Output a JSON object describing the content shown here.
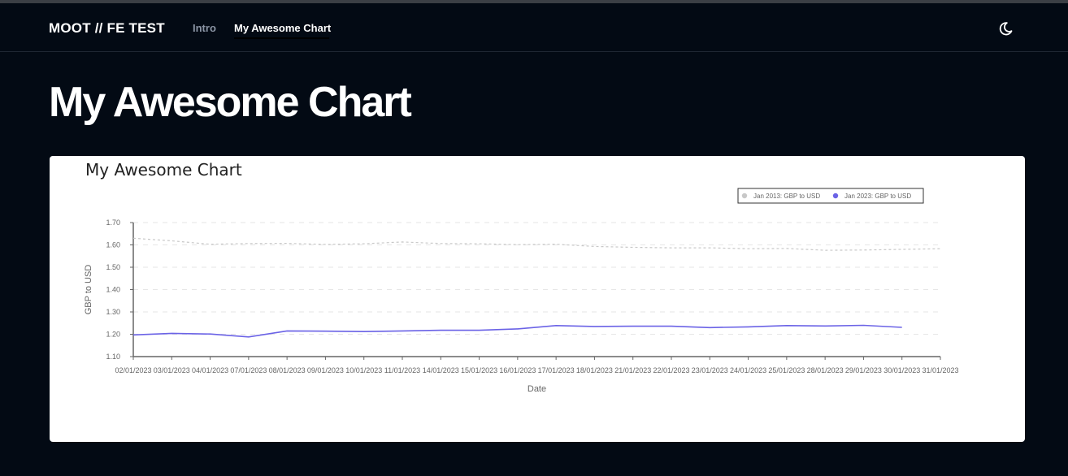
{
  "header": {
    "brand": "MOOT // FE TEST",
    "nav": [
      {
        "label": "Intro",
        "active": false
      },
      {
        "label": "My Awesome Chart",
        "active": true
      }
    ],
    "theme_toggle_icon": "moon-icon"
  },
  "page": {
    "title": "My Awesome Chart"
  },
  "chart_data": {
    "type": "line",
    "title": "My Awesome Chart",
    "xlabel": "Date",
    "ylabel": "GBP to USD",
    "categories": [
      "02/01/2023",
      "03/01/2023",
      "04/01/2023",
      "07/01/2023",
      "08/01/2023",
      "09/01/2023",
      "10/01/2023",
      "11/01/2023",
      "14/01/2023",
      "15/01/2023",
      "16/01/2023",
      "17/01/2023",
      "18/01/2023",
      "21/01/2023",
      "22/01/2023",
      "23/01/2023",
      "24/01/2023",
      "25/01/2023",
      "28/01/2023",
      "29/01/2023",
      "30/01/2023",
      "31/01/2023"
    ],
    "ylim": [
      1.1,
      1.7
    ],
    "yticks": [
      "1.10",
      "1.20",
      "1.30",
      "1.40",
      "1.50",
      "1.60",
      "1.70"
    ],
    "grid": true,
    "legend_position": "top-right",
    "series": [
      {
        "name": "Jan 2013: GBP to USD",
        "color": "#c8c8c8",
        "dashed": true,
        "values": [
          1.63,
          1.618,
          1.603,
          1.606,
          1.607,
          1.602,
          1.605,
          1.613,
          1.606,
          1.605,
          1.601,
          1.603,
          1.593,
          1.589,
          1.587,
          1.587,
          1.583,
          1.584,
          1.576,
          1.577,
          1.58,
          1.583
        ]
      },
      {
        "name": "Jan 2023: GBP to USD",
        "color": "#6b63e6",
        "dashed": false,
        "values": [
          1.197,
          1.204,
          1.201,
          1.188,
          1.215,
          1.214,
          1.212,
          1.215,
          1.218,
          1.218,
          1.224,
          1.239,
          1.235,
          1.236,
          1.236,
          1.23,
          1.233,
          1.239,
          1.237,
          1.24,
          1.231,
          null
        ]
      }
    ]
  }
}
